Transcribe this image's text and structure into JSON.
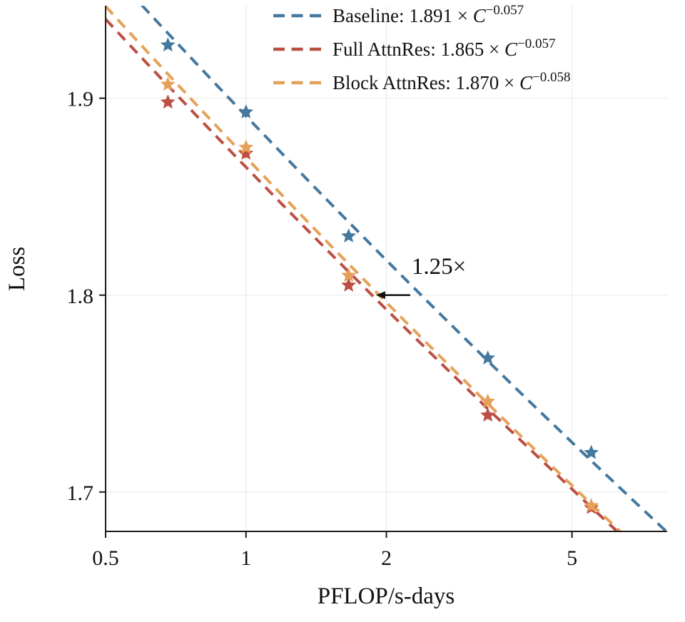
{
  "chart_data": {
    "type": "line",
    "title": "",
    "xlabel": "PFLOP/s-days",
    "ylabel": "Loss",
    "xscale": "log",
    "xlim": [
      0.5,
      8
    ],
    "ylim": [
      1.68,
      1.947
    ],
    "xticks": [
      0.5,
      1,
      2,
      5
    ],
    "xtick_labels": [
      "0.5",
      "1",
      "2",
      "5"
    ],
    "yticks": [
      1.7,
      1.8,
      1.9
    ],
    "ytick_labels": [
      "1.7",
      "1.8",
      "1.9"
    ],
    "grid": true,
    "legend_position": "top",
    "line_style": "dashed",
    "marker": "star",
    "series": [
      {
        "name": "Baseline",
        "color": "#45789F",
        "fit": {
          "coef": 1.891,
          "exp": -0.057
        },
        "legend": {
          "prefix": "Baseline: 1.891 × ",
          "var": "C",
          "sup": "−0.057"
        },
        "x": [
          0.68,
          1.0,
          1.66,
          3.3,
          5.5
        ],
        "y": [
          1.927,
          1.893,
          1.83,
          1.768,
          1.72
        ]
      },
      {
        "name": "Full AttnRes",
        "color": "#BC4F44",
        "fit": {
          "coef": 1.865,
          "exp": -0.057
        },
        "legend": {
          "prefix": "Full AttnRes: 1.865 × ",
          "var": "C",
          "sup": "−0.057"
        },
        "x": [
          0.68,
          1.0,
          1.66,
          3.3,
          5.5
        ],
        "y": [
          1.898,
          1.872,
          1.805,
          1.739,
          1.692
        ]
      },
      {
        "name": "Block AttnRes",
        "color": "#E5A158",
        "fit": {
          "coef": 1.87,
          "exp": -0.058
        },
        "legend": {
          "prefix": "Block AttnRes: 1.870 × ",
          "var": "C",
          "sup": "−0.058"
        },
        "x": [
          0.68,
          1.0,
          1.66,
          3.3,
          5.5
        ],
        "y": [
          1.907,
          1.875,
          1.81,
          1.746,
          1.693
        ]
      }
    ],
    "annotation": {
      "label": "1.25×",
      "arrow_y": 1.8,
      "arrow_x_from": 2.25,
      "arrow_x_to": 1.9
    }
  }
}
